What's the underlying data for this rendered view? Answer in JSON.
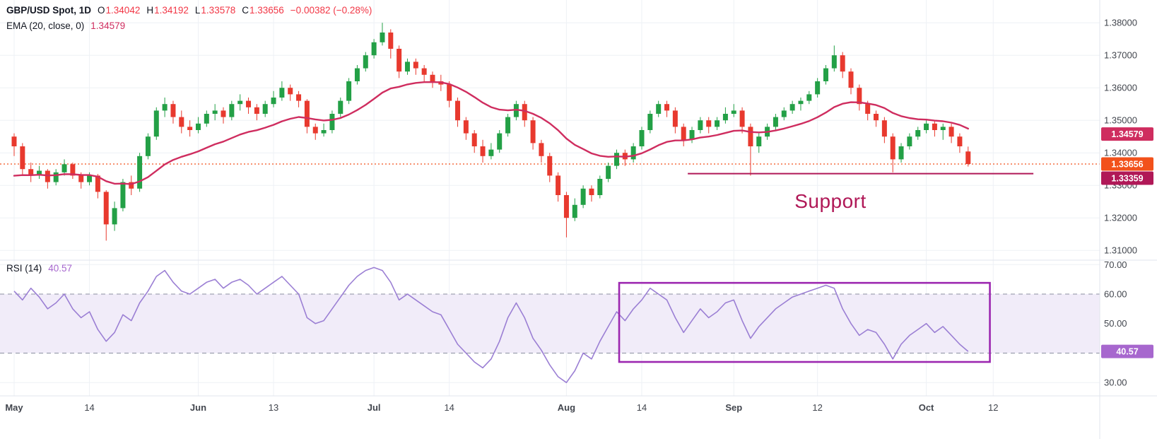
{
  "header": {
    "symbol": "GBP/USD Spot, 1D",
    "ohlc": [
      {
        "label": "O",
        "value": "1.34042"
      },
      {
        "label": "H",
        "value": "1.34192"
      },
      {
        "label": "L",
        "value": "1.33578"
      },
      {
        "label": "C",
        "value": "1.33656"
      }
    ],
    "change": "−0.00382 (−0.28%)",
    "ema_label": "EMA (20, close, 0)",
    "ema_value": "1.34579"
  },
  "rsi_legend": {
    "label": "RSI (14)",
    "value": "40.57"
  },
  "annotations": {
    "support_text": "Support"
  },
  "colors": {
    "up": "#23a046",
    "down": "#e8392e",
    "ema": "#cf2d5f",
    "support": "#b01857",
    "last_price": "#f2511b",
    "ohlc_value": "#f23645",
    "rsi_line": "#9b7fd4",
    "rsi_badge": "#a767ce",
    "rsi_band_fill": "#f1ecf9",
    "rsi_dash": "#8b8fa1",
    "box": "#9c27b0",
    "grid": "#eef1f6",
    "separator": "#e1e4ec",
    "axis_text": "#42464e",
    "header_text": "#131722"
  },
  "chart_data": [
    {
      "type": "candlestick",
      "title": "GBP/USD Spot, 1D",
      "ylim": [
        1.307,
        1.387
      ],
      "y_gridlines": [
        1.31,
        1.32,
        1.33,
        1.34,
        1.35,
        1.36,
        1.37,
        1.38
      ],
      "y_axis": {
        "labels": [
          {
            "text": "1.38000",
            "value": 1.38
          },
          {
            "text": "1.37000",
            "value": 1.37
          },
          {
            "text": "1.36000",
            "value": 1.36
          },
          {
            "text": "1.35000",
            "value": 1.35
          },
          {
            "text": "1.34000",
            "value": 1.34
          },
          {
            "text": "1.33000",
            "value": 1.33
          },
          {
            "text": "1.32000",
            "value": 1.32
          },
          {
            "text": "1.31000",
            "value": 1.31
          }
        ],
        "badges": [
          {
            "text": "1.34579",
            "value": 1.34579,
            "color_key": "ema"
          },
          {
            "text": "1.33656",
            "value": 1.33656,
            "color_key": "last_price"
          },
          {
            "text": "1.33359",
            "value": 1.33359,
            "color_key": "support"
          }
        ]
      },
      "x_ticks": [
        {
          "label": "May",
          "index": 0
        },
        {
          "label": "14",
          "index": 9
        },
        {
          "label": "Jun",
          "index": 22
        },
        {
          "label": "13",
          "index": 31
        },
        {
          "label": "Jul",
          "index": 43
        },
        {
          "label": "14",
          "index": 52
        },
        {
          "label": "Aug",
          "index": 66
        },
        {
          "label": "14",
          "index": 75
        },
        {
          "label": "Sep",
          "index": 86
        },
        {
          "label": "12",
          "index": 96
        },
        {
          "label": "Oct",
          "index": 109
        },
        {
          "label": "12",
          "index": 117
        }
      ],
      "candles": [
        [
          1.345,
          1.346,
          1.339,
          1.342
        ],
        [
          1.342,
          1.343,
          1.333,
          1.335
        ],
        [
          1.335,
          1.337,
          1.331,
          1.333
        ],
        [
          1.333,
          1.336,
          1.332,
          1.3345
        ],
        [
          1.3345,
          1.335,
          1.329,
          1.331
        ],
        [
          1.331,
          1.335,
          1.33,
          1.334
        ],
        [
          1.334,
          1.338,
          1.333,
          1.3365
        ],
        [
          1.3365,
          1.337,
          1.332,
          1.333
        ],
        [
          1.333,
          1.334,
          1.329,
          1.331
        ],
        [
          1.331,
          1.334,
          1.33,
          1.333
        ],
        [
          1.333,
          1.3335,
          1.326,
          1.328
        ],
        [
          1.328,
          1.3285,
          1.313,
          1.318
        ],
        [
          1.318,
          1.325,
          1.316,
          1.323
        ],
        [
          1.323,
          1.332,
          1.322,
          1.331
        ],
        [
          1.331,
          1.333,
          1.327,
          1.329
        ],
        [
          1.329,
          1.34,
          1.328,
          1.339
        ],
        [
          1.339,
          1.346,
          1.338,
          1.345
        ],
        [
          1.345,
          1.354,
          1.344,
          1.353
        ],
        [
          1.353,
          1.357,
          1.351,
          1.355
        ],
        [
          1.355,
          1.356,
          1.349,
          1.351
        ],
        [
          1.351,
          1.353,
          1.346,
          1.348
        ],
        [
          1.348,
          1.35,
          1.345,
          1.347
        ],
        [
          1.347,
          1.351,
          1.346,
          1.349
        ],
        [
          1.349,
          1.353,
          1.348,
          1.352
        ],
        [
          1.352,
          1.355,
          1.35,
          1.353
        ],
        [
          1.353,
          1.354,
          1.349,
          1.351
        ],
        [
          1.351,
          1.356,
          1.35,
          1.355
        ],
        [
          1.355,
          1.358,
          1.353,
          1.356
        ],
        [
          1.356,
          1.357,
          1.352,
          1.354
        ],
        [
          1.354,
          1.355,
          1.35,
          1.352
        ],
        [
          1.352,
          1.356,
          1.351,
          1.355
        ],
        [
          1.355,
          1.359,
          1.354,
          1.357
        ],
        [
          1.357,
          1.362,
          1.356,
          1.36
        ],
        [
          1.36,
          1.361,
          1.356,
          1.358
        ],
        [
          1.358,
          1.359,
          1.354,
          1.356
        ],
        [
          1.356,
          1.3565,
          1.346,
          1.348
        ],
        [
          1.348,
          1.349,
          1.344,
          1.346
        ],
        [
          1.346,
          1.349,
          1.345,
          1.347
        ],
        [
          1.347,
          1.353,
          1.346,
          1.352
        ],
        [
          1.352,
          1.357,
          1.351,
          1.356
        ],
        [
          1.356,
          1.363,
          1.355,
          1.362
        ],
        [
          1.362,
          1.367,
          1.361,
          1.366
        ],
        [
          1.366,
          1.371,
          1.365,
          1.37
        ],
        [
          1.37,
          1.375,
          1.369,
          1.374
        ],
        [
          1.374,
          1.38,
          1.373,
          1.377
        ],
        [
          1.377,
          1.378,
          1.369,
          1.372
        ],
        [
          1.372,
          1.373,
          1.363,
          1.365
        ],
        [
          1.365,
          1.369,
          1.364,
          1.368
        ],
        [
          1.368,
          1.369,
          1.364,
          1.366
        ],
        [
          1.366,
          1.367,
          1.362,
          1.364
        ],
        [
          1.364,
          1.365,
          1.36,
          1.362
        ],
        [
          1.362,
          1.364,
          1.359,
          1.361
        ],
        [
          1.361,
          1.362,
          1.354,
          1.356
        ],
        [
          1.356,
          1.357,
          1.348,
          1.35
        ],
        [
          1.35,
          1.351,
          1.344,
          1.346
        ],
        [
          1.346,
          1.347,
          1.34,
          1.342
        ],
        [
          1.342,
          1.344,
          1.337,
          1.339
        ],
        [
          1.339,
          1.343,
          1.338,
          1.341
        ],
        [
          1.341,
          1.347,
          1.34,
          1.346
        ],
        [
          1.346,
          1.352,
          1.345,
          1.351
        ],
        [
          1.351,
          1.356,
          1.35,
          1.355
        ],
        [
          1.355,
          1.356,
          1.348,
          1.35
        ],
        [
          1.35,
          1.351,
          1.341,
          1.343
        ],
        [
          1.343,
          1.344,
          1.337,
          1.339
        ],
        [
          1.339,
          1.34,
          1.331,
          1.333
        ],
        [
          1.333,
          1.334,
          1.325,
          1.327
        ],
        [
          1.327,
          1.328,
          1.314,
          1.32
        ],
        [
          1.32,
          1.326,
          1.319,
          1.324
        ],
        [
          1.324,
          1.33,
          1.323,
          1.329
        ],
        [
          1.329,
          1.33,
          1.325,
          1.327
        ],
        [
          1.327,
          1.333,
          1.326,
          1.332
        ],
        [
          1.332,
          1.337,
          1.331,
          1.336
        ],
        [
          1.336,
          1.341,
          1.335,
          1.34
        ],
        [
          1.34,
          1.341,
          1.336,
          1.338
        ],
        [
          1.338,
          1.343,
          1.337,
          1.342
        ],
        [
          1.342,
          1.348,
          1.341,
          1.347
        ],
        [
          1.347,
          1.353,
          1.346,
          1.352
        ],
        [
          1.352,
          1.356,
          1.351,
          1.355
        ],
        [
          1.355,
          1.356,
          1.351,
          1.353
        ],
        [
          1.353,
          1.354,
          1.346,
          1.348
        ],
        [
          1.348,
          1.349,
          1.342,
          1.344
        ],
        [
          1.344,
          1.348,
          1.343,
          1.347
        ],
        [
          1.347,
          1.351,
          1.346,
          1.35
        ],
        [
          1.35,
          1.351,
          1.346,
          1.348
        ],
        [
          1.348,
          1.351,
          1.347,
          1.35
        ],
        [
          1.35,
          1.354,
          1.349,
          1.352
        ],
        [
          1.352,
          1.355,
          1.351,
          1.353
        ],
        [
          1.353,
          1.354,
          1.346,
          1.348
        ],
        [
          1.348,
          1.349,
          1.333,
          1.342
        ],
        [
          1.342,
          1.346,
          1.34,
          1.345
        ],
        [
          1.345,
          1.349,
          1.344,
          1.348
        ],
        [
          1.348,
          1.352,
          1.347,
          1.351
        ],
        [
          1.351,
          1.354,
          1.35,
          1.353
        ],
        [
          1.353,
          1.356,
          1.352,
          1.355
        ],
        [
          1.355,
          1.357,
          1.353,
          1.356
        ],
        [
          1.356,
          1.359,
          1.355,
          1.358
        ],
        [
          1.358,
          1.363,
          1.357,
          1.362
        ],
        [
          1.362,
          1.367,
          1.361,
          1.366
        ],
        [
          1.366,
          1.373,
          1.365,
          1.37
        ],
        [
          1.37,
          1.371,
          1.363,
          1.365
        ],
        [
          1.365,
          1.366,
          1.358,
          1.36
        ],
        [
          1.36,
          1.361,
          1.353,
          1.355
        ],
        [
          1.355,
          1.356,
          1.35,
          1.352
        ],
        [
          1.352,
          1.353,
          1.348,
          1.35
        ],
        [
          1.35,
          1.351,
          1.343,
          1.345
        ],
        [
          1.345,
          1.346,
          1.334,
          1.338
        ],
        [
          1.338,
          1.343,
          1.337,
          1.342
        ],
        [
          1.342,
          1.346,
          1.341,
          1.345
        ],
        [
          1.345,
          1.348,
          1.344,
          1.347
        ],
        [
          1.347,
          1.35,
          1.346,
          1.349
        ],
        [
          1.349,
          1.35,
          1.345,
          1.347
        ],
        [
          1.347,
          1.349,
          1.344,
          1.348
        ],
        [
          1.348,
          1.349,
          1.343,
          1.345
        ],
        [
          1.345,
          1.346,
          1.34,
          1.342
        ],
        [
          1.34042,
          1.34192,
          1.33578,
          1.33656
        ]
      ],
      "overlays": {
        "ema": {
          "period": 20,
          "start_value": 1.332,
          "last_value": 1.34579
        },
        "support_line": {
          "price": 1.33359,
          "from_index": 80.5,
          "to_index": 121.8
        },
        "last_price_line": {
          "price": 1.33656,
          "style": "dotted"
        }
      }
    },
    {
      "type": "line",
      "title": "RSI (14)",
      "period": 14,
      "ylim": [
        25.5,
        71.5
      ],
      "gridlines": [
        70,
        50,
        30
      ],
      "band": [
        40,
        60
      ],
      "y_axis": {
        "labels": [
          {
            "text": "70.00",
            "value": 70
          },
          {
            "text": "60.00",
            "value": 60
          },
          {
            "text": "50.00",
            "value": 50
          },
          {
            "text": "30.00",
            "value": 30
          }
        ],
        "badge": {
          "text": "40.57",
          "value": 40.57,
          "color_key": "rsi_badge"
        }
      },
      "values": [
        61,
        58,
        62,
        59,
        55,
        57,
        60,
        55,
        52,
        54,
        48,
        44,
        47,
        53,
        51,
        57,
        61,
        66,
        68,
        64,
        61,
        60,
        62,
        64,
        65,
        62,
        64,
        65,
        63,
        60,
        62,
        64,
        66,
        63,
        60,
        52,
        50,
        51,
        55,
        59,
        63,
        66,
        68,
        69,
        68,
        64,
        58,
        60,
        58,
        56,
        54,
        53,
        48,
        43,
        40,
        37,
        35,
        38,
        44,
        52,
        57,
        52,
        45,
        41,
        36,
        32,
        30,
        34,
        40,
        38,
        44,
        49,
        54,
        51,
        55,
        58,
        62,
        60,
        58,
        52,
        47,
        51,
        55,
        52,
        54,
        57,
        58,
        51,
        45,
        49,
        52,
        55,
        57,
        59,
        60,
        61,
        62,
        63,
        62,
        55,
        50,
        46,
        48,
        47,
        43,
        38,
        43,
        46,
        48,
        50,
        47,
        49,
        46,
        43,
        40.57
      ],
      "last_value": 40.57,
      "highlight_box": {
        "from_index": 72.3,
        "to_index": 116.6,
        "top": 63.8,
        "bottom": 37.0
      }
    }
  ]
}
